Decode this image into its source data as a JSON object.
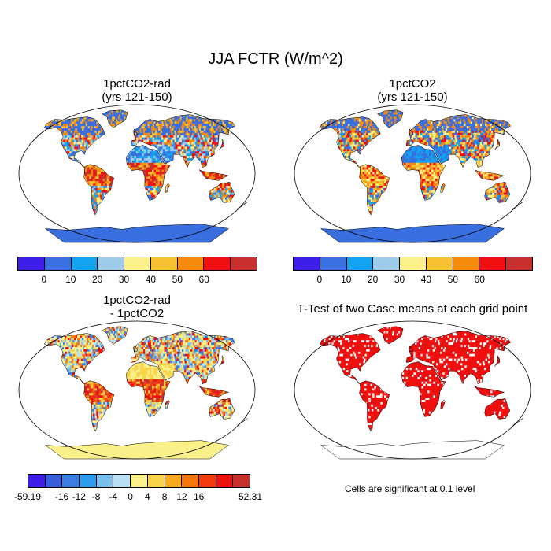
{
  "title": "JJA FCTR (W/m^2)",
  "panels": [
    {
      "id": "p1",
      "title_line1": "1pctCO2-rad",
      "title_line2": "(yrs 121-150)"
    },
    {
      "id": "p2",
      "title_line1": "1pctCO2",
      "title_line2": "(yrs 121-150)"
    },
    {
      "id": "p3",
      "title_line1": "1pctCO2-rad",
      "title_line2": "- 1pctCO2"
    },
    {
      "id": "p4",
      "title_line1": "T-Test of two Case means at each grid point",
      "title_line2": ""
    }
  ],
  "colorbar_main": {
    "colors": [
      "#3d1ee8",
      "#3a6fe0",
      "#13a3f0",
      "#9cccea",
      "#fbf08a",
      "#f8c033",
      "#f48b0e",
      "#f20f0f",
      "#c8302e"
    ],
    "ticks": [
      "0",
      "10",
      "20",
      "30",
      "40",
      "50",
      "60"
    ]
  },
  "colorbar_diff": {
    "colors": [
      "#3d1ee8",
      "#3a5ddc",
      "#3a7ee4",
      "#2b9cee",
      "#7ac0ec",
      "#b8e0f2",
      "#fbf08a",
      "#f8d44a",
      "#f8a91d",
      "#f4760d",
      "#f23c0c",
      "#ee0f0f",
      "#c8302e"
    ],
    "ticks": [
      "-59.19",
      "-16",
      "-12",
      "-8",
      "-4",
      "0",
      "4",
      "8",
      "12",
      "16",
      "52.31"
    ]
  },
  "ttest_color": "#ee0f0f",
  "significance_note": "Cells are significant at 0.1 level"
}
